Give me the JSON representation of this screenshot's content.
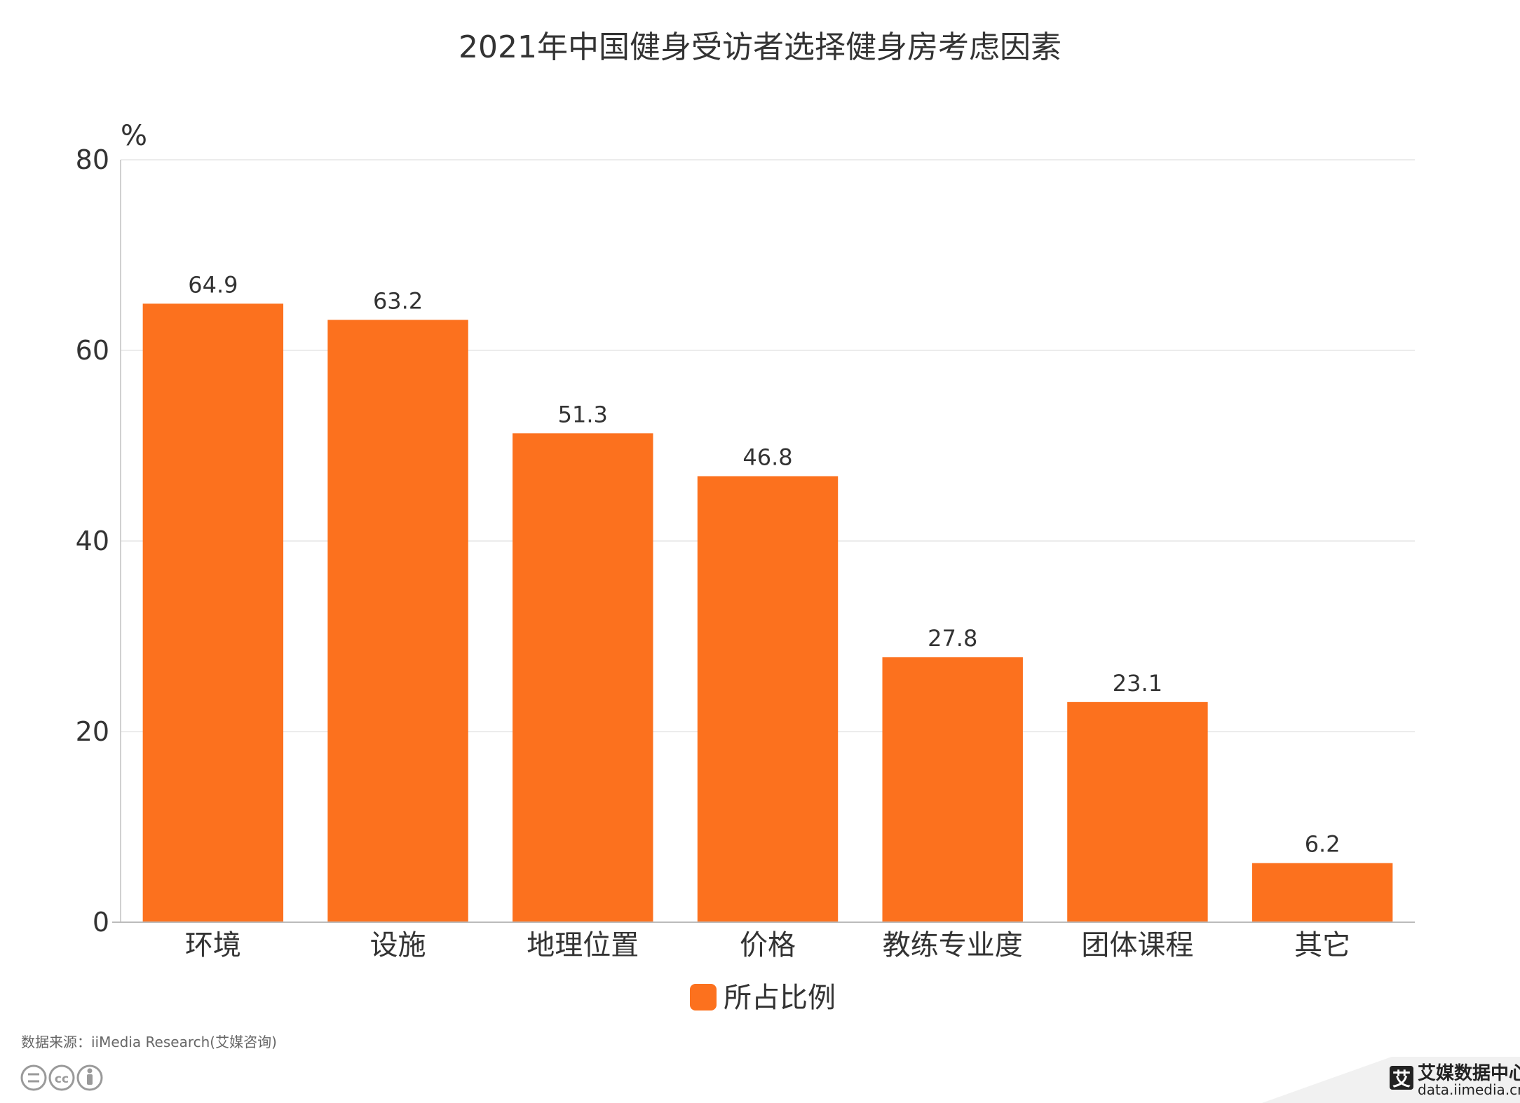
{
  "chart_data": {
    "type": "bar",
    "title": "2021年中国健身受访者选择健身房考虑因素",
    "ylabel": "%",
    "xlabel": "",
    "categories": [
      "环境",
      "设施",
      "地理位置",
      "价格",
      "教练专业度",
      "团体课程",
      "其它"
    ],
    "series": [
      {
        "name": "所占比例",
        "values": [
          64.9,
          63.2,
          51.3,
          46.8,
          27.8,
          23.1,
          6.2
        ],
        "color": "#FC711E"
      }
    ],
    "ylim": [
      0,
      80
    ],
    "yticks": [
      0,
      20,
      40,
      60,
      80
    ],
    "grid": true,
    "legend": "bottom-center"
  },
  "footer": {
    "source": "数据来源：iiMedia Research(艾媒咨询)",
    "brand_name": "艾媒数据中心",
    "brand_url": "data.iimedia.cn",
    "brand_logo_char": "艾",
    "license_icons": [
      "cc-nd-icon",
      "cc-icon",
      "cc-by-icon"
    ]
  }
}
